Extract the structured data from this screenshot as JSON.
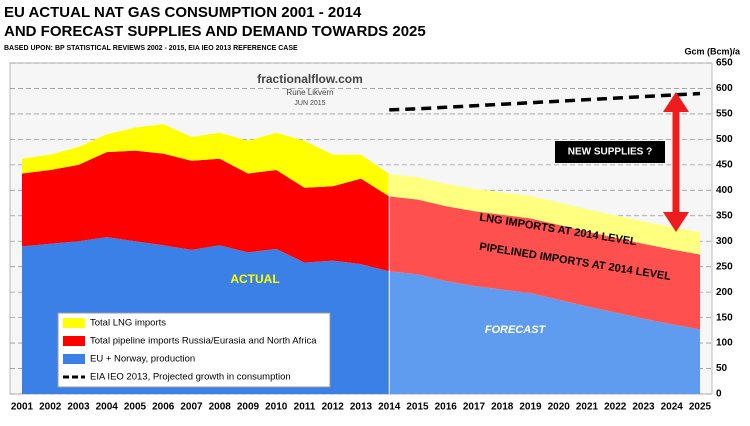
{
  "chart_data": {
    "type": "area",
    "title": [
      "EU ACTUAL NAT GAS CONSUMPTION 2001 - 2014",
      "AND FORECAST SUPPLIES AND DEMAND TOWARDS 2025"
    ],
    "source": "BASED UPON: BP STATISTICAL REVIEWS 2002 - 2015, EIA IEO 2013 REFERENCE CASE",
    "y_label": "Gcm (Bcm)/a",
    "annotations": {
      "watermark": "fractionalflow.com",
      "author": "Rune Likvern",
      "date": "JUN 2015",
      "actual": "ACTUAL",
      "forecast": "FORECAST",
      "new_supplies": "NEW SUPPLIES ?",
      "lng_label": "LNG IMPORTS AT 2014 LEVEL",
      "pipeline_label": "PIPELINED IMPORTS AT 2014 LEVEL"
    },
    "forecast_from": 2014,
    "x": [
      2001,
      2002,
      2003,
      2004,
      2005,
      2006,
      2007,
      2008,
      2009,
      2010,
      2011,
      2012,
      2013,
      2014,
      2015,
      2016,
      2017,
      2018,
      2019,
      2020,
      2021,
      2022,
      2023,
      2024,
      2025
    ],
    "xlim": [
      2001,
      2025
    ],
    "xticks": [
      2001,
      2002,
      2003,
      2004,
      2005,
      2006,
      2007,
      2008,
      2009,
      2010,
      2011,
      2012,
      2013,
      2014,
      2015,
      2016,
      2017,
      2018,
      2019,
      2020,
      2021,
      2022,
      2023,
      2024,
      2025
    ],
    "ylim": [
      0,
      650
    ],
    "yticks": [
      0,
      50,
      100,
      150,
      200,
      250,
      300,
      350,
      400,
      450,
      500,
      550,
      600,
      650
    ],
    "grid": true,
    "series": [
      {
        "name": "Total LNG imports",
        "color": "#ffff00",
        "forecast_color": "#ffff80",
        "values": [
          29,
          30,
          35,
          35,
          45,
          58,
          47,
          51,
          64,
          73,
          92,
          62,
          47,
          44,
          44,
          44,
          44,
          44,
          44,
          44,
          44,
          44,
          44,
          44,
          44
        ]
      },
      {
        "name": "Total pipeline imports Russia/Eurasia and North Africa",
        "color": "#ff0000",
        "forecast_color": "#ff5050",
        "values": [
          143,
          145,
          150,
          167,
          178,
          180,
          175,
          170,
          155,
          155,
          147,
          146,
          168,
          147,
          147,
          147,
          147,
          147,
          147,
          147,
          147,
          147,
          147,
          147,
          147
        ]
      },
      {
        "name": "EU + Norway, production",
        "color": "#3a80e6",
        "forecast_color": "#5f9cf0",
        "values": [
          290,
          295,
          300,
          308,
          300,
          292,
          283,
          292,
          278,
          285,
          258,
          262,
          255,
          241,
          235,
          222,
          212,
          205,
          198,
          185,
          172,
          160,
          148,
          137,
          127
        ]
      },
      {
        "name": "EIA IEO 2013, Projected growth in consumption",
        "color": "#000000",
        "dashed": true,
        "values": [
          null,
          null,
          null,
          null,
          null,
          null,
          null,
          null,
          null,
          null,
          null,
          null,
          null,
          558,
          560,
          563,
          566,
          569,
          572,
          575,
          578,
          581,
          584,
          587,
          590
        ]
      }
    ]
  }
}
